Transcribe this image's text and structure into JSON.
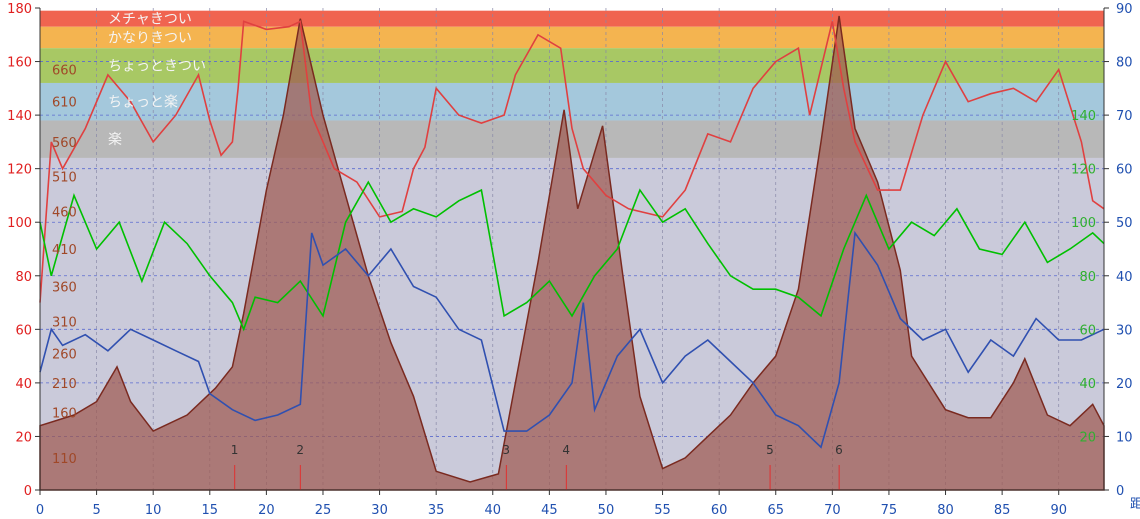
{
  "chart_data": {
    "type": "line",
    "x_ticks": [
      "0",
      "5",
      "10",
      "15",
      "20",
      "25",
      "30",
      "35",
      "40",
      "45",
      "50",
      "55",
      "60",
      "65",
      "70",
      "75",
      "80",
      "85",
      "90"
    ],
    "xlim": [
      0,
      94
    ],
    "x_unit_label": "距",
    "left_axis": {
      "ylim": [
        0,
        180
      ],
      "ticks": [
        "0",
        "20",
        "40",
        "60",
        "80",
        "100",
        "120",
        "140",
        "160",
        "180"
      ]
    },
    "right_axis": {
      "ylim": [
        0,
        90
      ],
      "ticks": [
        "0",
        "10",
        "20",
        "30",
        "40",
        "50",
        "60",
        "70",
        "80",
        "90"
      ]
    },
    "green_axis_labels": [
      {
        "text": "20",
        "at_left": 20
      },
      {
        "text": "40",
        "at_left": 40
      },
      {
        "text": "60",
        "at_left": 60
      },
      {
        "text": "80",
        "at_left": 80
      },
      {
        "text": "100",
        "at_left": 100
      },
      {
        "text": "120",
        "at_left": 120
      },
      {
        "text": "140",
        "at_left": 140
      }
    ],
    "inner_axis_labels": [
      {
        "text": "110",
        "at_left": 12
      },
      {
        "text": "160",
        "at_left": 29
      },
      {
        "text": "210",
        "at_left": 40
      },
      {
        "text": "260",
        "at_left": 51
      },
      {
        "text": "310",
        "at_left": 63
      },
      {
        "text": "360",
        "at_left": 76
      },
      {
        "text": "410",
        "at_left": 90
      },
      {
        "text": "460",
        "at_left": 104
      },
      {
        "text": "510",
        "at_left": 117
      },
      {
        "text": "560",
        "at_left": 130
      },
      {
        "text": "610",
        "at_left": 145
      },
      {
        "text": "660",
        "at_left": 157
      }
    ],
    "zones": [
      {
        "label": "メチャきつい",
        "from": 173,
        "to": 179,
        "color": "#f06450"
      },
      {
        "label": "かなりきつい",
        "from": 165,
        "to": 173,
        "color": "#f4b450"
      },
      {
        "label": "ちょっときつい",
        "from": 152,
        "to": 165,
        "color": "#a8c864"
      },
      {
        "label": "ちょっと楽",
        "from": 138,
        "to": 152,
        "color": "#a4c8dc"
      },
      {
        "label": "楽",
        "from": 124,
        "to": 138,
        "color": "#b8b8b8"
      },
      {
        "label": "",
        "from": 0,
        "to": 124,
        "color": "#cacada"
      }
    ],
    "laps": [
      {
        "label": "1",
        "x": 17.2
      },
      {
        "label": "2",
        "x": 23.0
      },
      {
        "label": "3",
        "x": 41.2
      },
      {
        "label": "4",
        "x": 46.5
      },
      {
        "label": "5",
        "x": 64.5
      },
      {
        "label": "6",
        "x": 70.6
      }
    ],
    "series": [
      {
        "axis": "left",
        "color": "#a05a50",
        "x": [
          0,
          3,
          5,
          6.8,
          8,
          10,
          13,
          15.5,
          17,
          18,
          20,
          21.5,
          23,
          25,
          27,
          29,
          31,
          33,
          35,
          38,
          40.5,
          42,
          44,
          46.3,
          47.5,
          49.7,
          51.5,
          53,
          55,
          57,
          59,
          61,
          63,
          65,
          67,
          69,
          70.6,
          72,
          74,
          76,
          77,
          80,
          82,
          84,
          86,
          87,
          89,
          91,
          93,
          94
        ],
        "values": [
          24,
          28,
          33,
          46,
          33,
          22,
          28,
          38,
          46,
          66,
          112,
          140,
          176,
          140,
          110,
          80,
          55,
          35,
          7,
          3,
          6,
          40,
          85,
          142,
          105,
          136,
          80,
          35,
          8,
          12,
          20,
          28,
          40,
          50,
          75,
          130,
          177,
          135,
          115,
          82,
          50,
          30,
          27,
          27,
          40,
          49,
          28,
          24,
          32,
          24
        ]
      },
      {
        "axis": "left",
        "color": "#e04040",
        "x": [
          0,
          1,
          2,
          4,
          6,
          8,
          10,
          12,
          14,
          15,
          16,
          17,
          17.5,
          18,
          20,
          22,
          23,
          24,
          26,
          28,
          30,
          32,
          33,
          34,
          35,
          37,
          39,
          41,
          42,
          44,
          46,
          47,
          48,
          50,
          52,
          55,
          57,
          59,
          61,
          63,
          65,
          67,
          68,
          70,
          71,
          72,
          74,
          76,
          78,
          80,
          82,
          84,
          86,
          88,
          90,
          92,
          93,
          94
        ],
        "values": [
          70,
          130,
          120,
          135,
          155,
          145,
          130,
          140,
          155,
          138,
          125,
          130,
          150,
          175,
          172,
          173,
          175,
          140,
          120,
          115,
          102,
          104,
          120,
          128,
          150,
          140,
          137,
          140,
          155,
          170,
          165,
          135,
          120,
          110,
          105,
          102,
          112,
          133,
          130,
          150,
          160,
          165,
          140,
          175,
          150,
          130,
          112,
          112,
          140,
          160,
          145,
          148,
          150,
          145,
          157,
          130,
          108,
          105
        ]
      },
      {
        "axis": "left",
        "color": "#00c000",
        "x": [
          0,
          1,
          2,
          3,
          5,
          7,
          9,
          11,
          13,
          15,
          17,
          18,
          19,
          21,
          23,
          25,
          27,
          29,
          31,
          33,
          35,
          37,
          39,
          41,
          43,
          45,
          47,
          49,
          51,
          53,
          55,
          57,
          59,
          61,
          63,
          65,
          67,
          69,
          71,
          73,
          75,
          77,
          79,
          81,
          83,
          85,
          87,
          89,
          91,
          93,
          94
        ],
        "values": [
          100,
          80,
          95,
          110,
          90,
          100,
          78,
          100,
          92,
          80,
          70,
          60,
          72,
          70,
          78,
          65,
          100,
          115,
          100,
          105,
          102,
          108,
          112,
          65,
          70,
          78,
          65,
          80,
          90,
          112,
          100,
          105,
          92,
          80,
          75,
          75,
          72,
          65,
          90,
          110,
          90,
          100,
          95,
          105,
          90,
          88,
          100,
          85,
          90,
          96,
          92
        ]
      },
      {
        "axis": "right",
        "color": "#3050b0",
        "x": [
          0,
          1,
          2,
          4,
          6,
          8,
          10,
          12,
          14,
          15,
          17,
          19,
          21,
          23,
          24,
          25,
          27,
          29,
          31,
          33,
          35,
          37,
          39,
          41,
          43,
          45,
          47,
          48,
          49,
          51,
          53,
          55,
          57,
          59,
          61,
          63,
          65,
          67,
          69,
          70.6,
          72,
          74,
          76,
          78,
          80,
          82,
          84,
          86,
          88,
          90,
          92,
          94
        ],
        "values": [
          22,
          30,
          27,
          29,
          26,
          30,
          28,
          26,
          24,
          18,
          15,
          13,
          14,
          16,
          48,
          42,
          45,
          40,
          45,
          38,
          36,
          30,
          28,
          11,
          11,
          14,
          20,
          35,
          15,
          25,
          30,
          20,
          25,
          28,
          24,
          20,
          14,
          12,
          8,
          20,
          48,
          42,
          32,
          28,
          30,
          22,
          28,
          25,
          32,
          28,
          28,
          30
        ]
      }
    ]
  }
}
